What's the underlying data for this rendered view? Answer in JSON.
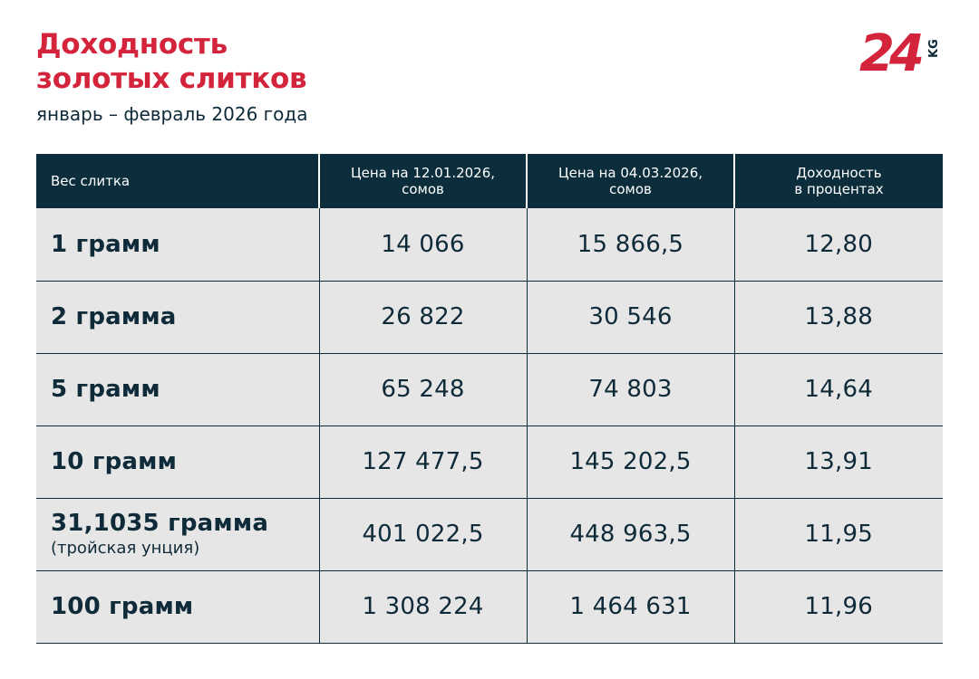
{
  "header": {
    "title_line1": "Доходность",
    "title_line2": "золотых слитков",
    "subtitle": "январь – февраль 2026 года"
  },
  "logo": {
    "number": "24",
    "suffix": "KG",
    "color": "#d3243c"
  },
  "table": {
    "columns": [
      [
        "Вес слитка"
      ],
      [
        "Цена на 12.01.2026,",
        "сомов"
      ],
      [
        "Цена на 04.03.2026,",
        "сомов"
      ],
      [
        "Доходность",
        "в процентах"
      ]
    ],
    "rows": [
      {
        "weight": "1 грамм",
        "weight_note": "",
        "price_start": "14 066",
        "price_end": "15 866,5",
        "yield": "12,80"
      },
      {
        "weight": "2 грамма",
        "weight_note": "",
        "price_start": "26 822",
        "price_end": "30 546",
        "yield": "13,88"
      },
      {
        "weight": "5 грамм",
        "weight_note": "",
        "price_start": "65 248",
        "price_end": "74 803",
        "yield": "14,64"
      },
      {
        "weight": "10 грамм",
        "weight_note": "",
        "price_start": "127 477,5",
        "price_end": "145 202,5",
        "yield": "13,91"
      },
      {
        "weight": "31,1035 грамма",
        "weight_note": "(тройская унция)",
        "price_start": "401 022,5",
        "price_end": "448 963,5",
        "yield": "11,95"
      },
      {
        "weight": "100 грамм",
        "weight_note": "",
        "price_start": "1 308 224",
        "price_end": "1 464 631",
        "yield": "11,96"
      }
    ]
  },
  "colors": {
    "accent": "#d3243c",
    "header_bg": "#0c2d3b",
    "row_bg": "#e6e6e6",
    "text": "#0f2a38"
  }
}
